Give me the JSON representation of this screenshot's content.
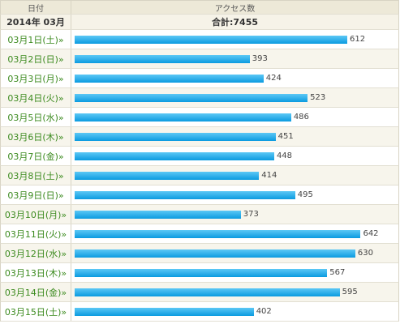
{
  "header": {
    "date": "日付",
    "count": "アクセス数"
  },
  "month": "2014年 03月",
  "total": "合計:7455",
  "rows": [
    {
      "date": "03月1日(土)»",
      "value": 612
    },
    {
      "date": "03月2日(日)»",
      "value": 393
    },
    {
      "date": "03月3日(月)»",
      "value": 424
    },
    {
      "date": "03月4日(火)»",
      "value": 523
    },
    {
      "date": "03月5日(水)»",
      "value": 486
    },
    {
      "date": "03月6日(木)»",
      "value": 451
    },
    {
      "date": "03月7日(金)»",
      "value": 448
    },
    {
      "date": "03月8日(土)»",
      "value": 414
    },
    {
      "date": "03月9日(日)»",
      "value": 495
    },
    {
      "date": "03月10日(月)»",
      "value": 373
    },
    {
      "date": "03月11日(火)»",
      "value": 642
    },
    {
      "date": "03月12日(水)»",
      "value": 630
    },
    {
      "date": "03月13日(木)»",
      "value": 567
    },
    {
      "date": "03月14日(金)»",
      "value": 595
    },
    {
      "date": "03月15日(土)»",
      "value": 402
    }
  ]
}
